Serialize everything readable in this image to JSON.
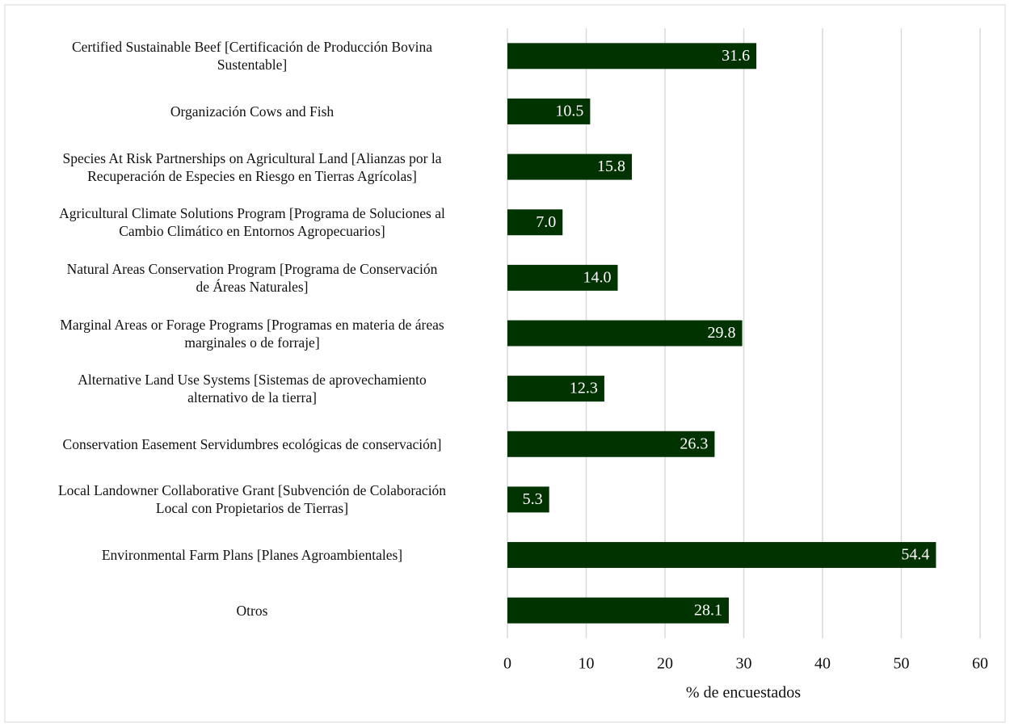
{
  "chart_data": {
    "type": "barh",
    "categories": [
      "Certified Sustainable Beef [Certificación de Producción Bovina\nSustentable]",
      "Organización Cows and Fish",
      "Species At Risk Partnerships on Agricultural Land [Alianzas por la\nRecuperación de Especies en Riesgo en Tierras Agrícolas]",
      "Agricultural Climate Solutions Program [Programa de Soluciones al\nCambio Climático en Entornos Agropecuarios]",
      "Natural Areas Conservation Program [Programa de Conservación\nde Áreas Naturales]",
      "Marginal Areas or Forage Programs [Programas en materia de áreas\nmarginales o de forraje]",
      "Alternative Land Use Systems [Sistemas de aprovechamiento\nalternativo de la tierra]",
      "Conservation Easement Servidumbres ecológicas de conservación]",
      "Local Landowner Collaborative Grant [Subvención de Colaboración\nLocal con Propietarios de Tierras]",
      "Environmental Farm Plans [Planes Agroambientales]",
      "Otros"
    ],
    "values": [
      31.6,
      10.5,
      15.8,
      7.0,
      14.0,
      29.8,
      12.3,
      26.3,
      5.3,
      54.4,
      28.1
    ],
    "value_labels": [
      "31.6",
      "10.5",
      "15.8",
      "7.0",
      "14.0",
      "29.8",
      "12.3",
      "26.3",
      "5.3",
      "54.4",
      "28.1"
    ],
    "color": "#003300",
    "xlabel": "% de encuestados",
    "xlim": [
      0,
      60
    ],
    "xticks": [
      0,
      10,
      20,
      30,
      40,
      50,
      60
    ],
    "grid": true
  }
}
